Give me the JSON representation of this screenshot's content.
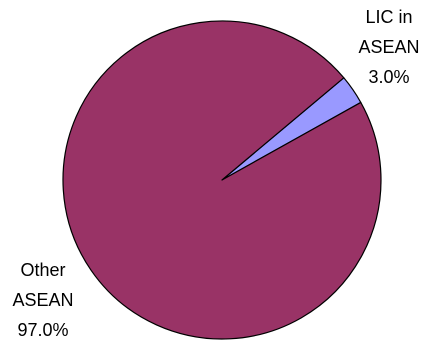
{
  "chart_data": {
    "type": "pie",
    "slices": [
      {
        "label_lines": [
          "LIC in",
          "ASEAN",
          "3.0%"
        ],
        "value": 3.0,
        "color": "#9999ff"
      },
      {
        "label_lines": [
          "Other",
          "ASEAN",
          "97.0%"
        ],
        "value": 97.0,
        "color": "#993366"
      }
    ]
  }
}
